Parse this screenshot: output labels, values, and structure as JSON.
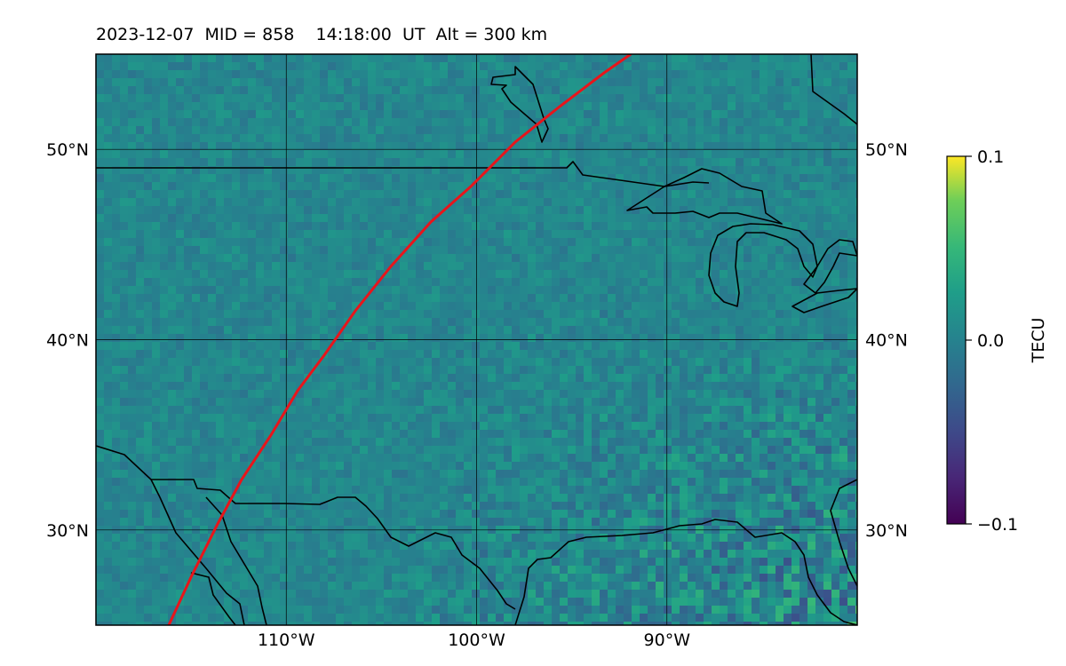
{
  "title": "2023-12-07  MID = 858    14:18:00  UT  Alt = 300 km",
  "map": {
    "lon_range": [
      -120,
      -80
    ],
    "lat_range": [
      25,
      55
    ],
    "lat_ticks": [
      {
        "value": 50,
        "label": "50°N"
      },
      {
        "value": 40,
        "label": "40°N"
      },
      {
        "value": 30,
        "label": "30°N"
      }
    ],
    "lon_ticks": [
      {
        "value": -110,
        "label": "110°W"
      },
      {
        "value": -100,
        "label": "100°W"
      },
      {
        "value": -90,
        "label": "90°W"
      }
    ],
    "colormap": "viridis",
    "track_color": "#e8151b",
    "coastline_color": "#000000",
    "gridlines": true
  },
  "colorbar": {
    "label": "TECU",
    "range": [
      -0.1,
      0.1
    ],
    "ticks": [
      {
        "value": 0.1,
        "label": "0.1"
      },
      {
        "value": 0.0,
        "label": "0.0"
      },
      {
        "value": -0.1,
        "label": "−0.1"
      }
    ]
  }
}
